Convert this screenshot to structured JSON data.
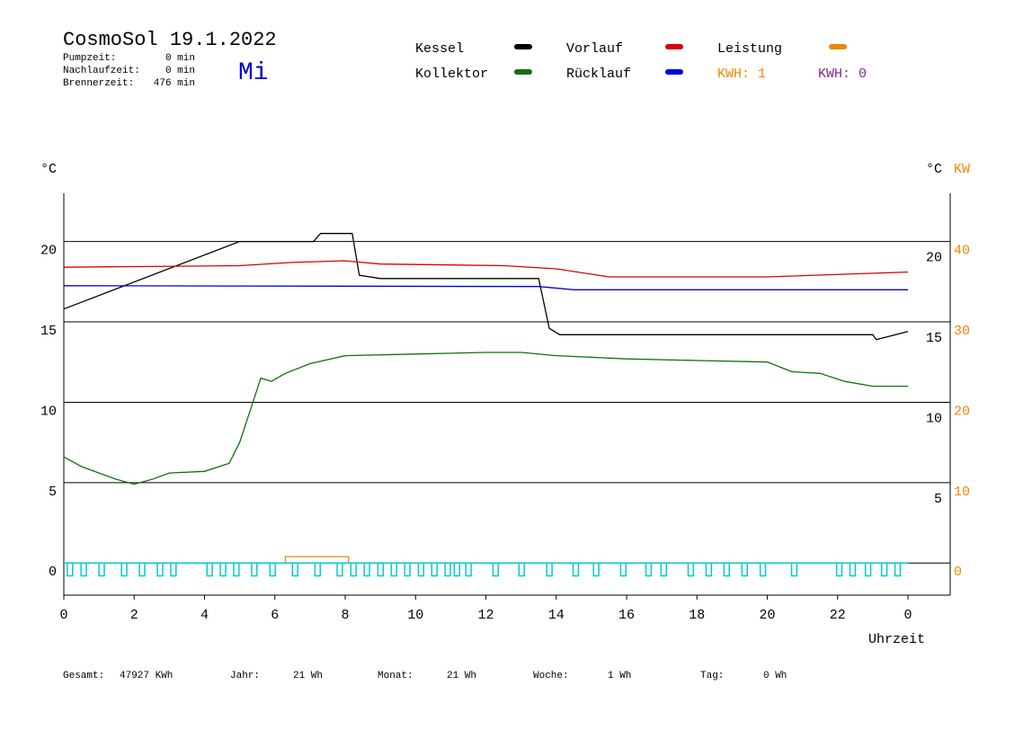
{
  "chart_data": {
    "type": "line",
    "title": "CosmoSol 19.1.2022",
    "day": "Mi",
    "stats": [
      {
        "label": "Pumpzeit:",
        "value": "0 min"
      },
      {
        "label": "Nachlaufzeit:",
        "value": "0 min"
      },
      {
        "label": "Brennerzeit:",
        "value": "476 min"
      }
    ],
    "kwh_labels": [
      {
        "text": "KWH: 1",
        "color": "#ee8800"
      },
      {
        "text": "KWH: 0",
        "color": "#882299"
      }
    ],
    "y_unit": "°C",
    "right_unit": "°C",
    "y2_unit": "KW",
    "x_label": "Uhrzeit",
    "xlim": [
      0,
      25.2
    ],
    "xticks": [
      0,
      2,
      4,
      6,
      8,
      10,
      12,
      14,
      16,
      18,
      20,
      22,
      {
        "value": 24,
        "label": "0"
      }
    ],
    "ylim": [
      -2,
      23
    ],
    "yticks": [
      0,
      5,
      10,
      15,
      20
    ],
    "right_ticks": [
      5,
      10,
      15,
      20
    ],
    "y2lim": [
      -4,
      46
    ],
    "y2ticks": [
      0,
      10,
      20,
      30,
      40
    ],
    "grid": true,
    "series": [
      {
        "name": "Kessel",
        "color": "#000000",
        "x": [
          0,
          5,
          7.1,
          7.3,
          8.2,
          8.4,
          9.0,
          13.5,
          13.8,
          14.1,
          23.0,
          23.1,
          24
        ],
        "values": [
          15.8,
          20,
          20,
          20.5,
          20.5,
          17.9,
          17.7,
          17.7,
          14.6,
          14.2,
          14.2,
          13.9,
          14.4
        ]
      },
      {
        "name": "Vorlauf",
        "color": "#dd0000",
        "x": [
          0,
          5,
          6.5,
          8,
          9,
          12.5,
          14,
          15.5,
          20,
          24
        ],
        "values": [
          18.4,
          18.5,
          18.7,
          18.8,
          18.6,
          18.5,
          18.3,
          17.8,
          17.8,
          18.1
        ]
      },
      {
        "name": "Leistung",
        "color": "#ee8800",
        "axis": "y2",
        "x": [
          6.3,
          6.3,
          8.1,
          8.1
        ],
        "values": [
          0,
          0.8,
          0.8,
          0
        ]
      },
      {
        "name": "Kollektor",
        "color": "#107010",
        "x": [
          0,
          0.5,
          1,
          1.5,
          2,
          2.5,
          3,
          4,
          4.7,
          5,
          5.3,
          5.6,
          5.9,
          6.3,
          7,
          8,
          10,
          12,
          13,
          14,
          16,
          18,
          20,
          20.7,
          21.5,
          22.2,
          23,
          24
        ],
        "values": [
          6.6,
          6.0,
          5.6,
          5.2,
          4.9,
          5.2,
          5.6,
          5.7,
          6.2,
          7.5,
          9.5,
          11.5,
          11.3,
          11.8,
          12.4,
          12.9,
          13.0,
          13.1,
          13.1,
          12.9,
          12.7,
          12.6,
          12.5,
          11.9,
          11.8,
          11.3,
          11.0,
          11.0
        ]
      },
      {
        "name": "Rücklauf",
        "color": "#0000dd",
        "x": [
          0,
          13.5,
          14.5,
          24
        ],
        "values": [
          17.25,
          17.2,
          17.0,
          17.0
        ]
      }
    ],
    "pump_pulses": {
      "color": "#00cccc",
      "depth": -0.8,
      "width": 0.15,
      "x": [
        0.1,
        0.49,
        1.0,
        1.64,
        2.15,
        2.66,
        3.04,
        4.07,
        4.45,
        4.83,
        5.34,
        5.86,
        6.5,
        7.14,
        7.77,
        8.16,
        8.54,
        8.93,
        9.31,
        9.69,
        10.08,
        10.46,
        10.84,
        11.1,
        11.43,
        12.2,
        12.94,
        13.73,
        14.48,
        15.06,
        15.83,
        16.55,
        16.98,
        17.75,
        18.26,
        18.77,
        19.28,
        19.8,
        20.69,
        21.97,
        22.35,
        22.79,
        23.25,
        23.63
      ]
    },
    "totals": [
      {
        "label": "Gesamt:",
        "value": "47927 KWh"
      },
      {
        "label": "Jahr:",
        "value": "21 Wh"
      },
      {
        "label": "Monat:",
        "value": "21 Wh"
      },
      {
        "label": "Woche:",
        "value": "1 Wh"
      },
      {
        "label": "Tag:",
        "value": "0 Wh"
      }
    ]
  }
}
